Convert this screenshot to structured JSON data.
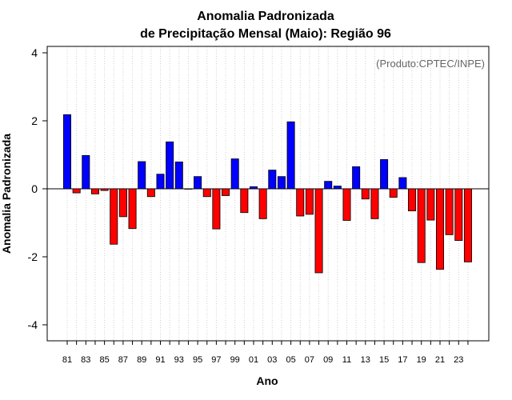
{
  "chart_data": {
    "type": "bar",
    "title_line1": "Anomalia Padronizada",
    "title_line2": "de Precipitação Mensal (Maio): Região 96",
    "xlabel": "Ano",
    "ylabel": "Anomalia Padronizada",
    "credit": "(Produto:CPTEC/INPE)",
    "ylim": [
      -4.5,
      4.3
    ],
    "yticks": [
      -4,
      -2,
      0,
      2,
      4
    ],
    "years": [
      "81",
      "82",
      "83",
      "84",
      "85",
      "86",
      "87",
      "88",
      "89",
      "90",
      "91",
      "92",
      "93",
      "94",
      "95",
      "96",
      "97",
      "98",
      "99",
      "00",
      "01",
      "02",
      "03",
      "04",
      "05",
      "06",
      "07",
      "08",
      "09",
      "10",
      "11",
      "12",
      "13",
      "14",
      "15",
      "16",
      "17",
      "18",
      "19",
      "20",
      "21",
      "22",
      "23",
      "24"
    ],
    "xtick_labels": [
      "81",
      "83",
      "85",
      "87",
      "89",
      "91",
      "93",
      "95",
      "97",
      "99",
      "01",
      "03",
      "05",
      "07",
      "09",
      "11",
      "13",
      "15",
      "17",
      "19",
      "21",
      "23"
    ],
    "values": [
      2.18,
      -0.12,
      0.98,
      -0.15,
      -0.05,
      -1.63,
      -0.82,
      -1.17,
      0.8,
      -0.23,
      0.43,
      1.38,
      0.79,
      0.0,
      0.36,
      -0.23,
      -1.18,
      -0.2,
      0.88,
      -0.7,
      0.06,
      -0.88,
      0.55,
      0.36,
      1.97,
      -0.8,
      -0.75,
      -2.47,
      0.22,
      0.08,
      -0.93,
      0.65,
      -0.3,
      -0.88,
      0.86,
      -0.25,
      0.33,
      -0.65,
      -2.17,
      -0.92,
      -2.37,
      -1.35,
      -1.52,
      -2.15
    ],
    "colors": {
      "positive": "#0000ff",
      "negative": "#ff0000",
      "zero_line": "#000000",
      "grid": "#d0d0d0"
    },
    "grid": true
  }
}
